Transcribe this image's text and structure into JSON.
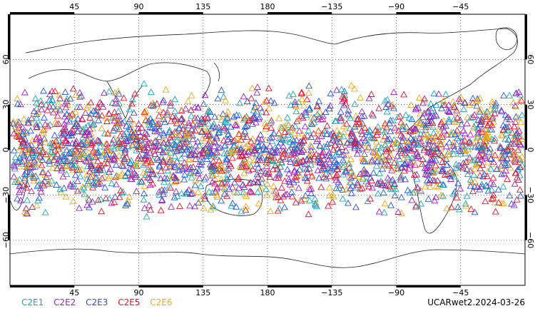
{
  "map": {
    "projection": "plate-carree",
    "lon_range": [
      0,
      360
    ],
    "lat_range": [
      -90,
      90
    ],
    "grid": true,
    "top_lon_labels": [
      "45",
      "90",
      "135",
      "180",
      "−135",
      "−90",
      "−45"
    ],
    "bottom_lon_labels": [
      "45",
      "90",
      "135",
      "180",
      "−135",
      "−90",
      "−45"
    ],
    "lat_labels": [
      "60",
      "30",
      "0",
      "−30",
      "−60"
    ],
    "lon_ticks": [
      45,
      90,
      135,
      180,
      225,
      270,
      315
    ],
    "lat_ticks": [
      60,
      30,
      0,
      -30,
      -60
    ],
    "observation_band_lat": [
      -45,
      45
    ],
    "marker": "open-triangle"
  },
  "legend": {
    "items": [
      {
        "label": "C2E1",
        "color": "#1aa7b7"
      },
      {
        "label": "C2E2",
        "color": "#a020c0"
      },
      {
        "label": "C2E3",
        "color": "#2255dd"
      },
      {
        "label": "C2E5",
        "color": "#e8102a"
      },
      {
        "label": "C2E6",
        "color": "#f0a818"
      }
    ]
  },
  "caption": "UCARwet2.2024-03-26"
}
